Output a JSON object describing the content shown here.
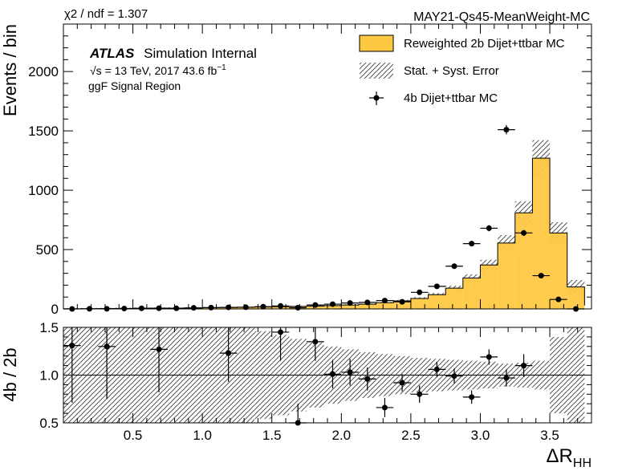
{
  "header": {
    "chi2": "χ2 / ndf = 1.307",
    "sample": "MAY21-Qs45-MeanWeight-MC"
  },
  "labels": {
    "atlas": "ATLAS",
    "internal": "Simulation Internal",
    "sqrt_sym": "√s",
    "energy": " = 13 TeV, 2017 43.6 fb",
    "energy_sup": "−1",
    "region": "ggF Signal Region"
  },
  "legend": {
    "bkg": "Reweighted 2b Dijet+ttbar MC",
    "err": "Stat. + Syst. Error",
    "data": "4b Dijet+ttbar MC"
  },
  "colors": {
    "bkg_fill": "#ffc842",
    "data": "#000000"
  },
  "chart_data": [
    {
      "type": "bar",
      "panel": "main",
      "ylabel": "Events / bin",
      "ylim": [
        0,
        2400
      ],
      "xlim": [
        0.0,
        3.8
      ],
      "yticks": [
        0,
        500,
        1000,
        1500,
        2000
      ],
      "bin_edges": [
        0.0,
        0.125,
        0.25,
        0.375,
        0.5,
        0.625,
        0.75,
        0.875,
        1.0,
        1.125,
        1.25,
        1.375,
        1.5,
        1.625,
        1.75,
        1.875,
        2.0,
        2.125,
        2.25,
        2.375,
        2.5,
        2.625,
        2.75,
        2.875,
        3.0,
        3.125,
        3.25,
        3.375,
        3.5,
        3.625,
        3.75
      ],
      "series": [
        {
          "name": "Reweighted 2b Dijet+ttbar MC",
          "values": [
            1,
            2,
            3,
            4,
            5,
            6,
            7,
            8,
            10,
            12,
            14,
            16,
            19,
            21,
            24,
            28,
            33,
            40,
            52,
            68,
            88,
            120,
            175,
            260,
            370,
            555,
            810,
            1270,
            640,
            185,
            30
          ]
        },
        {
          "name": "4b Dijet+ttbar MC",
          "x": [
            0.0625,
            0.1875,
            0.3125,
            0.4375,
            0.5625,
            0.6875,
            0.8125,
            0.9375,
            1.0625,
            1.1875,
            1.3125,
            1.4375,
            1.5625,
            1.6875,
            1.8125,
            1.9375,
            2.0625,
            2.1875,
            2.3125,
            2.4375,
            2.5625,
            2.6875,
            2.8125,
            2.9375,
            3.0625,
            3.1875,
            3.3125,
            3.4375,
            3.5625,
            3.6875
          ],
          "values": [
            0,
            1,
            1,
            3,
            5,
            6,
            5,
            9,
            11,
            13,
            14,
            19,
            25,
            10,
            33,
            40,
            50,
            55,
            70,
            60,
            140,
            190,
            360,
            550,
            680,
            1510,
            640,
            280,
            80,
            0
          ],
          "errors": [
            1,
            1,
            1,
            2,
            2,
            2,
            2,
            3,
            3,
            4,
            4,
            4,
            5,
            3,
            6,
            6,
            7,
            7,
            8,
            8,
            12,
            14,
            19,
            23,
            26,
            39,
            25,
            17,
            9,
            2
          ]
        }
      ]
    },
    {
      "type": "scatter",
      "panel": "ratio",
      "ylabel": "4b / 2b",
      "xlabel": "ΔR",
      "xlabel_sub": "HH",
      "ylim": [
        0.5,
        1.5
      ],
      "xlim": [
        0.0,
        3.8
      ],
      "yticks": [
        0.5,
        1.0,
        1.5
      ],
      "ytick_labels": [
        "0.5",
        "1.0",
        "1.5"
      ],
      "xticks": [
        0.5,
        1.0,
        1.5,
        2.0,
        2.5,
        3.0,
        3.5
      ],
      "xtick_labels": [
        "0.5",
        "1.0",
        "1.5",
        "2.0",
        "2.5",
        "3.0",
        "3.5"
      ],
      "reference_line": 1.0,
      "x": [
        0.0625,
        0.3125,
        0.6875,
        1.1875,
        1.5625,
        1.6875,
        1.8125,
        1.9375,
        2.0625,
        2.1875,
        2.3125,
        2.4375,
        2.5625,
        2.6875,
        2.8125,
        2.9375,
        3.0625,
        3.1875,
        3.3125
      ],
      "values": [
        1.31,
        1.3,
        1.27,
        1.23,
        1.45,
        0.5,
        1.35,
        1.01,
        1.03,
        0.96,
        0.66,
        0.92,
        0.8,
        1.06,
        0.99,
        0.77,
        1.19,
        0.97,
        1.1
      ],
      "errors": [
        0.6,
        0.55,
        0.45,
        0.3,
        0.3,
        0.2,
        0.2,
        0.15,
        0.14,
        0.12,
        0.1,
        0.09,
        0.09,
        0.08,
        0.08,
        0.07,
        0.08,
        0.09,
        0.12
      ],
      "band_halfwidth": [
        0.9,
        0.88,
        0.85,
        0.8,
        0.75,
        0.7,
        0.65,
        0.6,
        0.55,
        0.52,
        0.5,
        0.46,
        0.42,
        0.38,
        0.34,
        0.3,
        0.27,
        0.24,
        0.22,
        0.2,
        0.18,
        0.17,
        0.16,
        0.15,
        0.14,
        0.12,
        0.13,
        0.15,
        0.4,
        0.9
      ]
    }
  ]
}
